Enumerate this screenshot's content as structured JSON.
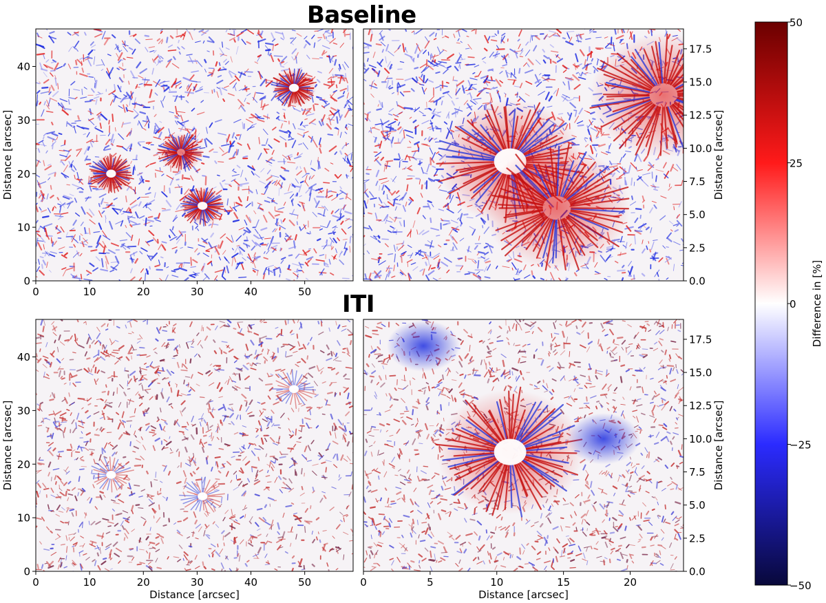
{
  "figure": {
    "panel_titles": [
      "Baseline",
      "ITI"
    ]
  },
  "colors": {
    "cmap_low": "#08083a",
    "cmap_mid_low": "#2b2bff",
    "cmap_mid": "#ffffff",
    "cmap_mid_high": "#ff1a1a",
    "cmap_high": "#6b0000",
    "axis": "#000000"
  },
  "chart_data": [
    {
      "type": "heatmap",
      "group": "Baseline",
      "title": "",
      "xlabel": "",
      "ylabel": "Distance [arcsec]",
      "xlim": [
        0,
        59
      ],
      "ylim": [
        0,
        47
      ],
      "xticks": [
        0,
        10,
        20,
        30,
        40,
        50
      ],
      "yticks": [
        0,
        10,
        20,
        30,
        40
      ],
      "colorbar": "Difference in [%]",
      "features": [
        {
          "x": 14,
          "y": 20,
          "kind": "penumbra-sunspot"
        },
        {
          "x": 27,
          "y": 24,
          "kind": "penumbra"
        },
        {
          "x": 31,
          "y": 14,
          "kind": "pore"
        },
        {
          "x": 48,
          "y": 36,
          "kind": "penumbra-sunspot"
        }
      ]
    },
    {
      "type": "heatmap",
      "group": "Baseline",
      "title": "",
      "xlabel": "",
      "ylabel": "Distance [arcsec]",
      "ylabel_side": "right",
      "xlim": [
        0,
        24
      ],
      "ylim": [
        0,
        19
      ],
      "xticks": [],
      "yticks": [
        "0.0",
        "2.5",
        "5.0",
        "7.5",
        "10.0",
        "12.5",
        "15.0",
        "17.5"
      ],
      "features": [
        {
          "x": 11,
          "y": 9,
          "kind": "penumbra-sunspot"
        },
        {
          "x": 14.5,
          "y": 5.5,
          "kind": "penumbra"
        },
        {
          "x": 22.5,
          "y": 14,
          "kind": "penumbra"
        }
      ]
    },
    {
      "type": "heatmap",
      "group": "ITI",
      "title": "",
      "xlabel": "Distance [arcsec]",
      "ylabel": "Distance [arcsec]",
      "xlim": [
        0,
        59
      ],
      "ylim": [
        0,
        47
      ],
      "xticks": [
        0,
        10,
        20,
        30,
        40,
        50
      ],
      "yticks": [
        0,
        10,
        20,
        30,
        40
      ],
      "features": [
        {
          "x": 14,
          "y": 18,
          "kind": "sunspot-faint"
        },
        {
          "x": 31,
          "y": 14,
          "kind": "pore-faint"
        },
        {
          "x": 48,
          "y": 34,
          "kind": "sunspot-faint"
        }
      ]
    },
    {
      "type": "heatmap",
      "group": "ITI",
      "title": "",
      "xlabel": "Distance [arcsec]",
      "ylabel": "Distance [arcsec]",
      "ylabel_side": "right",
      "xlim": [
        0,
        24
      ],
      "ylim": [
        0,
        19
      ],
      "xticks": [
        0,
        5,
        10,
        15,
        20
      ],
      "yticks": [
        "0.0",
        "2.5",
        "5.0",
        "7.5",
        "10.0",
        "12.5",
        "15.0",
        "17.5"
      ],
      "features": [
        {
          "x": 11,
          "y": 9,
          "kind": "penumbra-sunspot"
        },
        {
          "x": 18,
          "y": 10,
          "kind": "blue-patch"
        },
        {
          "x": 4.5,
          "y": 17,
          "kind": "blue-patch"
        }
      ]
    },
    {
      "type": "colorbar",
      "label": "Difference in [%]",
      "min": -50,
      "max": 50,
      "ticks": [
        50,
        25,
        0,
        -25,
        -50
      ],
      "tick_labels": [
        "50",
        "25",
        "0",
        "−25",
        "−50"
      ],
      "colormap": "seismic"
    }
  ]
}
